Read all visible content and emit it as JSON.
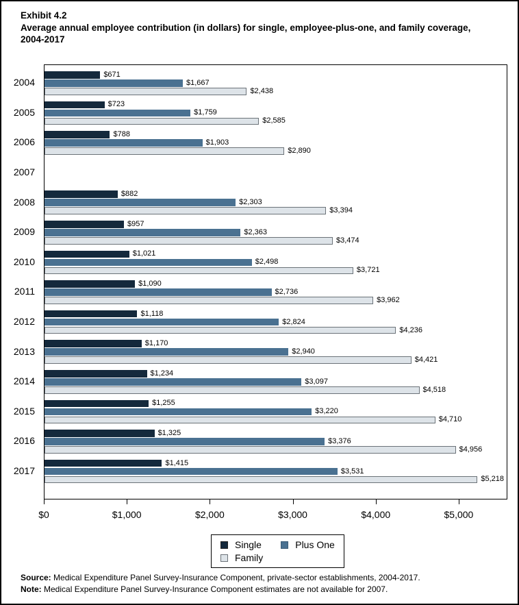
{
  "title": {
    "exhibit": "Exhibit 4.2",
    "subtitle": "Average annual employee contribution (in dollars) for single, employee-plus-one, and family coverage, 2004-2017"
  },
  "chart_data": {
    "type": "bar",
    "orientation": "horizontal",
    "title": "Exhibit 4.2",
    "subtitle": "Average annual employee contribution (in dollars) for single, employee-plus-one, and family coverage, 2004-2017",
    "categories": [
      "2004",
      "2005",
      "2006",
      "2007",
      "2008",
      "2009",
      "2010",
      "2011",
      "2012",
      "2013",
      "2014",
      "2015",
      "2016",
      "2017"
    ],
    "series": [
      {
        "name": "Single",
        "color": "#14293C",
        "values": [
          671,
          723,
          788,
          null,
          882,
          957,
          1021,
          1090,
          1118,
          1170,
          1234,
          1255,
          1325,
          1415
        ],
        "labels": [
          "$671",
          "$723",
          "$788",
          "",
          "$882",
          "$957",
          "$1,021",
          "$1,090",
          "$1,118",
          "$1,170",
          "$1,234",
          "$1,255",
          "$1,325",
          "$1,415"
        ]
      },
      {
        "name": "Plus One",
        "color": "#4A7191",
        "values": [
          1667,
          1759,
          1903,
          null,
          2303,
          2363,
          2498,
          2736,
          2824,
          2940,
          3097,
          3220,
          3376,
          3531
        ],
        "labels": [
          "$1,667",
          "$1,759",
          "$1,903",
          "",
          "$2,303",
          "$2,363",
          "$2,498",
          "$2,736",
          "$2,824",
          "$2,940",
          "$3,097",
          "$3,220",
          "$3,376",
          "$3,531"
        ]
      },
      {
        "name": "Family",
        "color": "#DDE3E8",
        "values": [
          2438,
          2585,
          2890,
          null,
          3394,
          3474,
          3721,
          3962,
          4236,
          4421,
          4518,
          4710,
          4956,
          5218
        ],
        "labels": [
          "$2,438",
          "$2,585",
          "$2,890",
          "",
          "$3,394",
          "$3,474",
          "$3,721",
          "$3,962",
          "$4,236",
          "$4,421",
          "$4,518",
          "$4,710",
          "$4,956",
          "$5,218"
        ]
      }
    ],
    "xticks": [
      {
        "value": 0,
        "label": "$0"
      },
      {
        "value": 1000,
        "label": "$1,000"
      },
      {
        "value": 2000,
        "label": "$2,000"
      },
      {
        "value": 3000,
        "label": "$3,000"
      },
      {
        "value": 4000,
        "label": "$4,000"
      },
      {
        "value": 5000,
        "label": "$5,000"
      }
    ],
    "xlim": [
      0,
      5570
    ],
    "xmax": 5570,
    "grid": false,
    "legend_position": "bottom"
  },
  "footer": {
    "source_label": "Source:",
    "source_text": "Medical Expenditure Panel Survey-Insurance Component, private-sector establishments, 2004-2017.",
    "note_label": "Note:",
    "note_text": "Medical Expenditure Panel Survey-Insurance Component estimates are not available for 2007."
  }
}
